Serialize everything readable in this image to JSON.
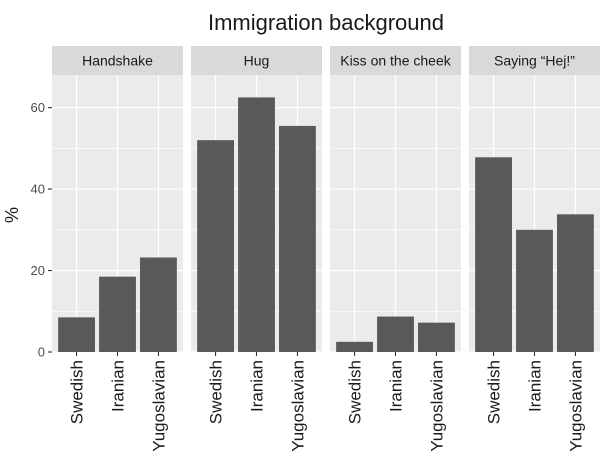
{
  "chart_data": {
    "type": "bar",
    "title": "Immigration background",
    "ylabel": "%",
    "xlabel": "",
    "ylim": [
      0,
      68
    ],
    "yticks": [
      0,
      20,
      40,
      60
    ],
    "categories": [
      "Swedish",
      "Iranian",
      "Yugoslavian"
    ],
    "bar_color": "#595959",
    "panel_color": "#ebebeb",
    "strip_color": "#d9d9d9",
    "grid": true,
    "facets": [
      {
        "name": "Handshake",
        "values": [
          8.5,
          18.5,
          23.2
        ]
      },
      {
        "name": "Hug",
        "values": [
          52.0,
          62.5,
          55.5
        ]
      },
      {
        "name": "Kiss on the cheek",
        "values": [
          2.5,
          8.7,
          7.2
        ]
      },
      {
        "name": "Saying “Hej!”",
        "values": [
          47.8,
          30.0,
          33.8
        ]
      }
    ]
  }
}
